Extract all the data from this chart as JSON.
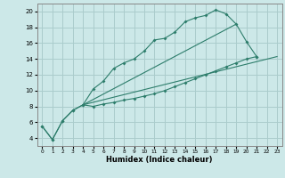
{
  "xlabel": "Humidex (Indice chaleur)",
  "bg_color": "#cce8e8",
  "grid_color": "#aacccc",
  "line_color": "#2d7d6b",
  "xlim": [
    -0.5,
    23.5
  ],
  "ylim": [
    3.0,
    21.0
  ],
  "ytick_vals": [
    4,
    6,
    8,
    10,
    12,
    14,
    16,
    18,
    20
  ],
  "xtick_vals": [
    0,
    1,
    2,
    3,
    4,
    5,
    6,
    7,
    8,
    9,
    10,
    11,
    12,
    13,
    14,
    15,
    16,
    17,
    18,
    19,
    20,
    21,
    22,
    23
  ],
  "curve1_x": [
    0,
    1,
    2,
    3,
    4,
    5,
    6,
    7,
    8,
    9,
    10,
    11,
    12,
    13,
    14,
    15,
    16,
    17,
    18,
    19,
    20,
    21
  ],
  "curve1_y": [
    5.5,
    3.8,
    6.2,
    7.5,
    8.2,
    10.2,
    11.2,
    12.8,
    13.5,
    14.0,
    15.0,
    16.4,
    16.6,
    17.4,
    18.7,
    19.2,
    19.5,
    20.2,
    19.7,
    18.4,
    16.2,
    14.3
  ],
  "curve2_x": [
    0,
    1,
    2,
    3,
    4,
    5,
    6,
    7,
    8,
    9,
    10,
    11,
    12,
    13,
    14,
    15,
    16,
    17,
    18,
    19,
    20,
    21
  ],
  "curve2_y": [
    5.5,
    3.8,
    6.2,
    7.5,
    8.2,
    8.0,
    8.3,
    8.5,
    8.8,
    9.0,
    9.3,
    9.6,
    10.0,
    10.5,
    11.0,
    11.5,
    12.0,
    12.5,
    13.0,
    13.5,
    14.0,
    14.3
  ],
  "line1_x": [
    4,
    23
  ],
  "line1_y": [
    8.2,
    14.3
  ],
  "line2_x": [
    4,
    19
  ],
  "line2_y": [
    8.2,
    18.4
  ]
}
